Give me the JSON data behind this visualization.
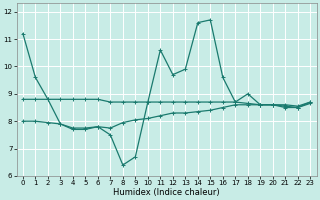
{
  "xlabel": "Humidex (Indice chaleur)",
  "bg_color": "#c8ece6",
  "line_color": "#1a7a6e",
  "xlim": [
    -0.5,
    23.5
  ],
  "ylim": [
    6,
    12.3
  ],
  "yticks": [
    6,
    7,
    8,
    9,
    10,
    11,
    12
  ],
  "xticks": [
    0,
    1,
    2,
    3,
    4,
    5,
    6,
    7,
    8,
    9,
    10,
    11,
    12,
    13,
    14,
    15,
    16,
    17,
    18,
    19,
    20,
    21,
    22,
    23
  ],
  "series0": [
    11.2,
    9.6,
    8.8,
    7.9,
    7.7,
    7.7,
    7.8,
    7.5,
    6.4,
    6.7,
    8.7,
    10.6,
    9.7,
    9.9,
    11.6,
    11.7,
    9.6,
    8.7,
    9.0,
    8.6,
    8.6,
    8.5,
    8.5,
    8.7
  ],
  "series1": [
    8.8,
    8.8,
    8.8,
    8.8,
    8.8,
    8.8,
    8.8,
    8.7,
    8.7,
    8.7,
    8.7,
    8.7,
    8.7,
    8.7,
    8.7,
    8.7,
    8.7,
    8.7,
    8.65,
    8.6,
    8.6,
    8.6,
    8.55,
    8.7
  ],
  "series2": [
    8.0,
    8.0,
    7.95,
    7.9,
    7.75,
    7.75,
    7.8,
    7.75,
    7.95,
    8.05,
    8.1,
    8.2,
    8.3,
    8.3,
    8.35,
    8.4,
    8.5,
    8.6,
    8.6,
    8.6,
    8.6,
    8.55,
    8.5,
    8.65
  ],
  "xlabel_fontsize": 6,
  "tick_fontsize": 5,
  "linewidth": 0.9,
  "markersize": 2.5
}
